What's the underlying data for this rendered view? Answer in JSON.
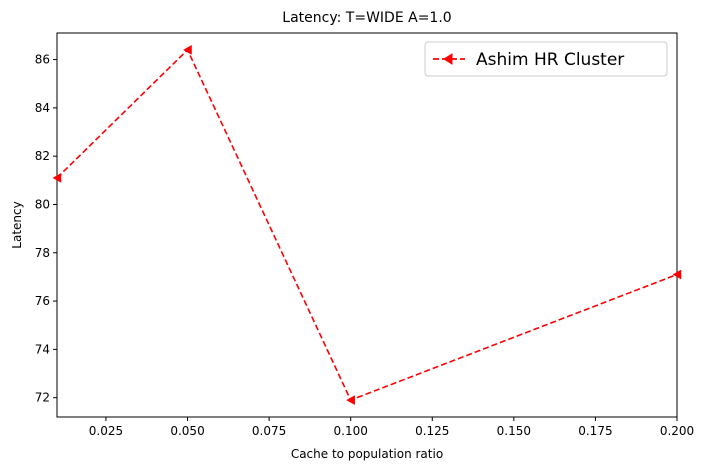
{
  "chart_data": {
    "type": "line",
    "title": "Latency: T=WIDE A=1.0",
    "xlabel": "Cache to population ratio",
    "ylabel": "Latency",
    "xlim": [
      0.01,
      0.2
    ],
    "ylim": [
      71.2,
      87.1
    ],
    "xticks": [
      0.025,
      0.05,
      0.075,
      0.1,
      0.125,
      0.15,
      0.175,
      0.2
    ],
    "xtick_labels": [
      "0.025",
      "0.050",
      "0.075",
      "0.100",
      "0.125",
      "0.150",
      "0.175",
      "0.200"
    ],
    "yticks": [
      72,
      74,
      76,
      78,
      80,
      82,
      84,
      86
    ],
    "ytick_labels": [
      "72",
      "74",
      "76",
      "78",
      "80",
      "82",
      "84",
      "86"
    ],
    "grid": false,
    "legend_position": "top-right",
    "series": [
      {
        "name": "Ashim HR Cluster",
        "color": "#ff0000",
        "line_style": "dashed",
        "marker": "triangle-left",
        "x": [
          0.01,
          0.05,
          0.1,
          0.2
        ],
        "y": [
          81.1,
          86.4,
          71.9,
          77.1
        ]
      }
    ]
  }
}
